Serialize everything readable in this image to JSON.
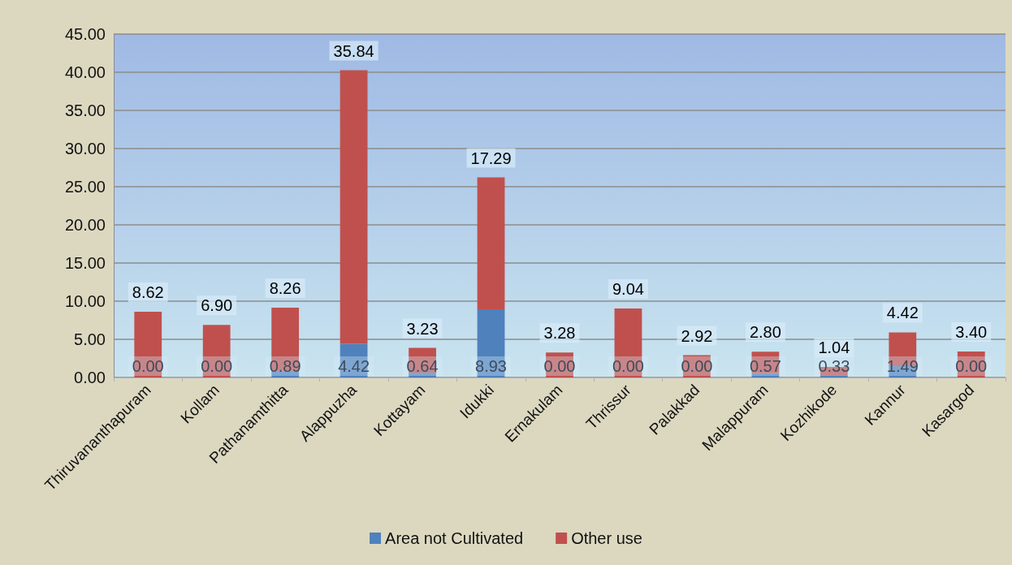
{
  "chart_data": {
    "type": "bar",
    "stacked": true,
    "categories": [
      "Thiruvananthapuram",
      "Kollam",
      "Pathanamthitta",
      "Alappuzha",
      "Kottayam",
      "Idukki",
      "Ernakulam",
      "Thrissur",
      "Palakkad",
      "Malappuram",
      "Kozhikode",
      "Kannur",
      "Kasargod"
    ],
    "series": [
      {
        "name": "Area not Cultivated",
        "color": "#4f81bd",
        "values": [
          0,
          0,
          0.89,
          4.42,
          0.64,
          8.93,
          0,
          0,
          0,
          0.57,
          0.33,
          1.49,
          0
        ],
        "value_labels": [
          "0.00",
          "0.00",
          "0.89",
          "4.42",
          "0.64",
          "8.93",
          "0.00",
          "0.00",
          "0.00",
          "0.57",
          "0.33",
          "1.49",
          "0.00"
        ]
      },
      {
        "name": "Other use",
        "color": "#c0504d",
        "values": [
          8.62,
          6.9,
          8.26,
          35.84,
          3.23,
          17.29,
          3.28,
          9.04,
          2.92,
          2.8,
          1.04,
          4.42,
          3.4
        ],
        "value_labels": [
          "8.62",
          "6.90",
          "8.26",
          "35.84",
          "3.23",
          "17.29",
          "3.28",
          "9.04",
          "2.92",
          "2.80",
          "1.04",
          "4.42",
          "3.40"
        ]
      }
    ],
    "ylim": [
      0,
      45
    ],
    "yticks": [
      {
        "value": 0,
        "label": "0.00"
      },
      {
        "value": 5,
        "label": "5.00"
      },
      {
        "value": 10,
        "label": "10.00"
      },
      {
        "value": 15,
        "label": "15.00"
      },
      {
        "value": 20,
        "label": "20.00"
      },
      {
        "value": 25,
        "label": "25.00"
      },
      {
        "value": 30,
        "label": "30.00"
      },
      {
        "value": 35,
        "label": "35.00"
      },
      {
        "value": 40,
        "label": "40.00"
      },
      {
        "value": 45,
        "label": "45.00"
      }
    ],
    "grid": "y",
    "legend": "bottom"
  }
}
